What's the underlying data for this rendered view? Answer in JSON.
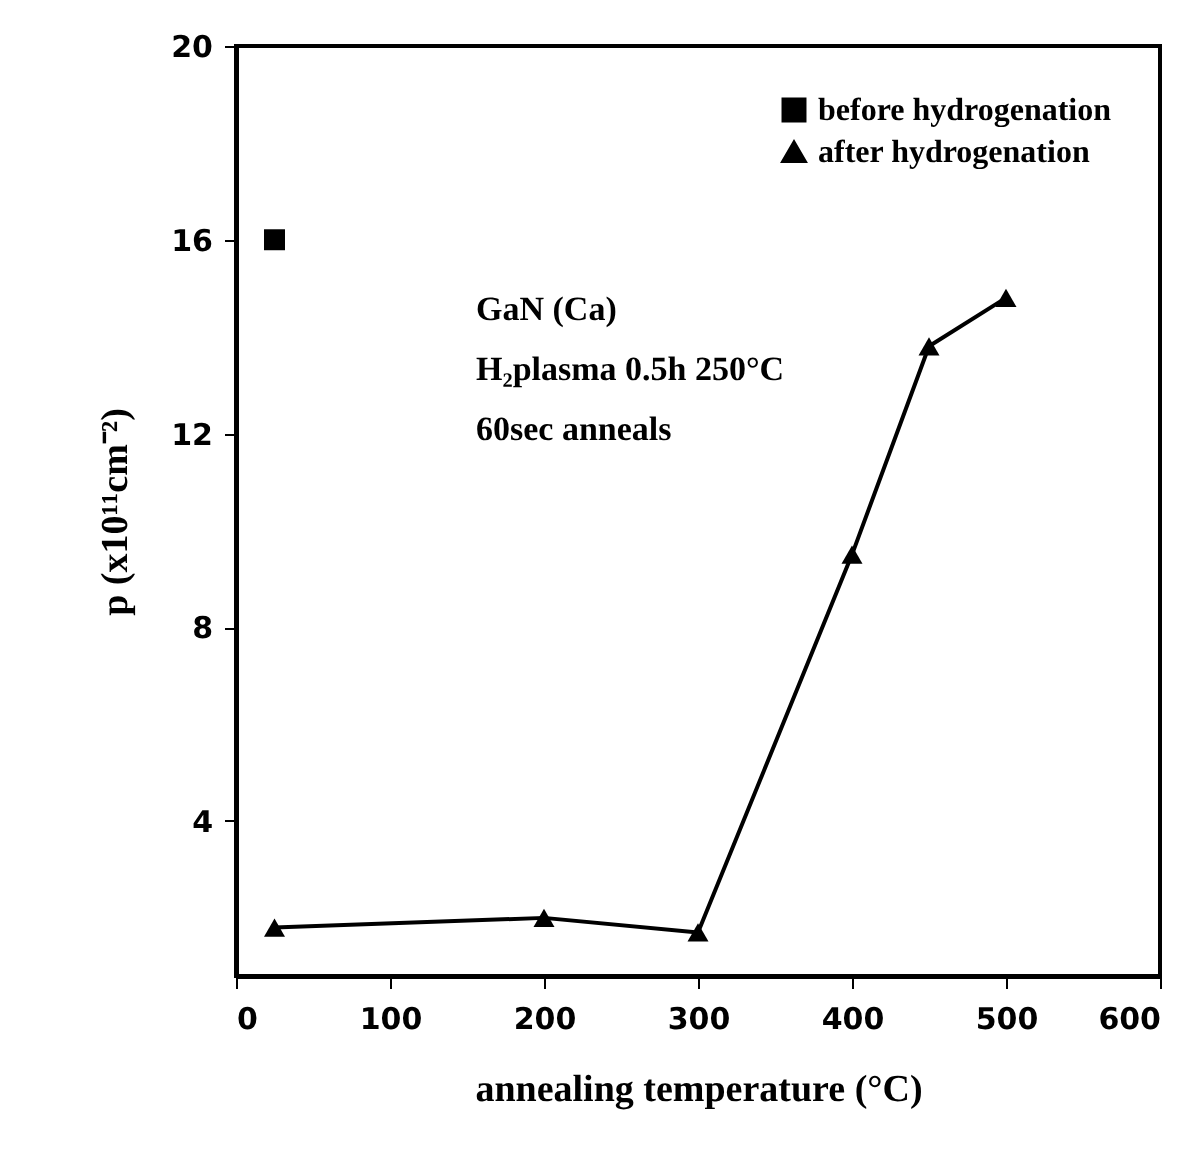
{
  "chart_data": {
    "type": "line",
    "xlabel": "annealing temperature (°C)",
    "ylabel": "p (x10¹¹cm⁻²)",
    "xlim": [
      0,
      600
    ],
    "xticks": [
      0,
      100,
      200,
      300,
      400,
      500,
      600
    ],
    "ylim": [
      0.8,
      20
    ],
    "yticks": [
      4,
      8,
      12,
      16,
      20
    ],
    "grid": false,
    "legend": "top right",
    "line_style": "solid",
    "annotations": [
      "GaN (Ca)",
      "H₂plasma 0.5h 250°C",
      "60sec anneals"
    ],
    "series": [
      {
        "name": "before hydrogenation",
        "color": "#000000",
        "marker": "square",
        "x": [
          25
        ],
        "values": [
          16
        ]
      },
      {
        "name": "after hydrogenation",
        "color": "#000000",
        "marker": "triangle",
        "x": [
          25,
          200,
          300,
          400,
          450,
          500
        ],
        "values": [
          1.8,
          2.0,
          1.7,
          9.5,
          13.8,
          14.8
        ]
      }
    ]
  }
}
